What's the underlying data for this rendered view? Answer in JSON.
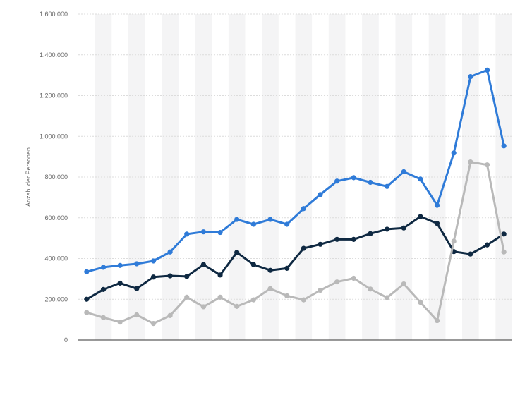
{
  "chart_data": {
    "type": "line",
    "ylabel": "Anzahl der Personen",
    "ylim": [
      0,
      1600000
    ],
    "yticks": [
      0,
      200000,
      400000,
      600000,
      800000,
      1000000,
      1200000,
      1400000,
      1600000
    ],
    "ytick_labels": [
      "0",
      "200.000",
      "400.000",
      "600.000",
      "800.000",
      "1.000.000",
      "1.200.000",
      "1.400.000",
      "1.600.000"
    ],
    "grid": true,
    "legend": "none",
    "x_count": 26,
    "series": [
      {
        "color": "#2f7bd8",
        "values": [
          335000,
          357000,
          366000,
          374000,
          388000,
          432000,
          520000,
          531000,
          528000,
          592000,
          568000,
          592000,
          568000,
          645000,
          714000,
          780000,
          797000,
          774000,
          754000,
          826000,
          790000,
          661000,
          918000,
          1293000,
          1325000,
          953000
        ]
      },
      {
        "color": "#0f2942",
        "values": [
          200000,
          248000,
          279000,
          252000,
          309000,
          315000,
          312000,
          370000,
          319000,
          430000,
          370000,
          342000,
          352000,
          450000,
          470000,
          494000,
          494000,
          522000,
          544000,
          550000,
          606000,
          572000,
          434000,
          422000,
          467000,
          520000
        ]
      },
      {
        "color": "#b9b9b9",
        "values": [
          135000,
          110000,
          88000,
          123000,
          81000,
          120000,
          210000,
          163000,
          210000,
          165000,
          197000,
          252000,
          217000,
          197000,
          244000,
          285000,
          303000,
          250000,
          208000,
          275000,
          185000,
          95000,
          485000,
          874000,
          860000,
          432000
        ]
      }
    ]
  }
}
